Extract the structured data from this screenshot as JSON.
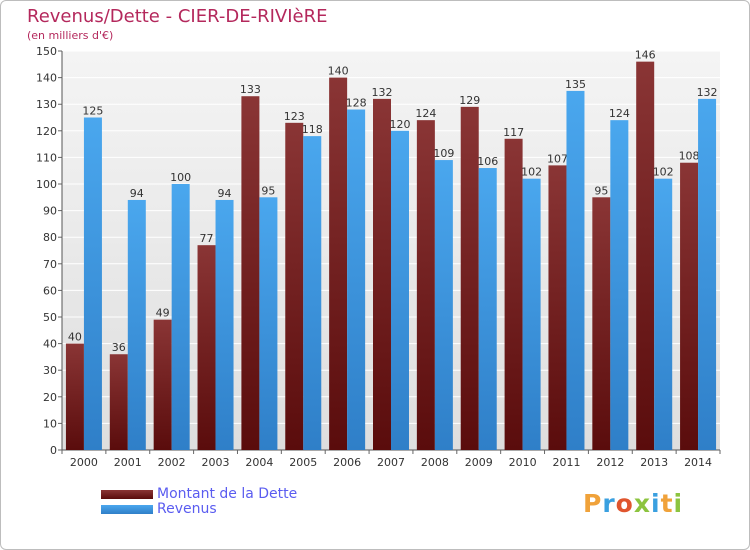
{
  "chart_data": {
    "type": "bar",
    "title": "Revenus/Dette - CIER-DE-RIVIèRE",
    "subtitle": "(en milliers d'€)",
    "categories": [
      "2000",
      "2001",
      "2002",
      "2003",
      "2004",
      "2005",
      "2006",
      "2007",
      "2008",
      "2009",
      "2010",
      "2011",
      "2012",
      "2013",
      "2014"
    ],
    "series": [
      {
        "name": "Montant de la Dette",
        "values": [
          40,
          36,
          49,
          77,
          133,
          123,
          140,
          132,
          124,
          129,
          117,
          107,
          95,
          146,
          108
        ],
        "color": "#7a2222"
      },
      {
        "name": "Revenus",
        "values": [
          125,
          94,
          100,
          94,
          95,
          118,
          128,
          120,
          109,
          106,
          102,
          135,
          124,
          102,
          132
        ],
        "color": "#3f9be4"
      }
    ],
    "ylim": [
      0,
      150
    ],
    "yticks": [
      0,
      10,
      20,
      30,
      40,
      50,
      60,
      70,
      80,
      90,
      100,
      110,
      120,
      130,
      140,
      150
    ],
    "grid": true,
    "legend_position": "bottom-left"
  },
  "logo": {
    "letters": [
      {
        "ch": "P",
        "color": "#f0a23a"
      },
      {
        "ch": "r",
        "color": "#3aa0e0"
      },
      {
        "ch": "o",
        "color": "#e0552e"
      },
      {
        "ch": "x",
        "color": "#8cc43f"
      },
      {
        "ch": "i",
        "color": "#3aa0e0"
      },
      {
        "ch": "t",
        "color": "#f0a23a"
      },
      {
        "ch": "i",
        "color": "#8cc43f"
      }
    ]
  }
}
